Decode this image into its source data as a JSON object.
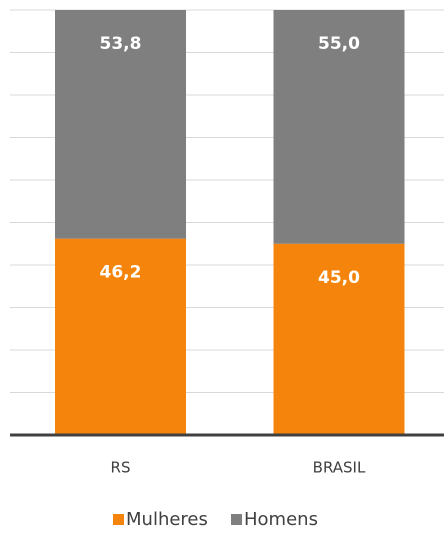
{
  "chart_data": {
    "type": "stacked_bar",
    "categories": [
      "RS",
      "BRASIL"
    ],
    "series": [
      {
        "name": "Mulheres",
        "color": "#f5840c",
        "values": [
          46.2,
          45.0
        ],
        "value_labels": [
          "46,2",
          "45,0"
        ]
      },
      {
        "name": "Homens",
        "color": "#7f7f7f",
        "values": [
          53.8,
          55.0
        ],
        "value_labels": [
          "53,8",
          "55,0"
        ]
      }
    ],
    "ylim": [
      0,
      100
    ],
    "yticks": [
      0,
      10,
      20,
      30,
      40,
      50,
      60,
      70,
      80,
      90,
      100
    ],
    "grid": true,
    "legend": "bottom"
  }
}
